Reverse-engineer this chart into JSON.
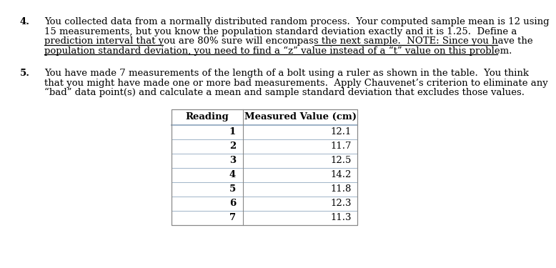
{
  "q4_lines": [
    "You collected data from a normally distributed random process.  Your computed sample mean is 12 using",
    "15 measurements, but you know the population standard deviation exactly and it is 1.25.  Define a",
    "prediction interval that you are 80% sure will encompass the next sample.  NOTE: Since you have the",
    "population standard deviation, you need to find a “z” value instead of a “t” value on this problem."
  ],
  "q5_lines": [
    "You have made 7 measurements of the length of a bolt using a ruler as shown in the table.  You think",
    "that you might have made one or more bad measurements.  Apply Chauvenet’s criterion to eliminate any",
    "“bad” data point(s) and calculate a mean and sample standard deviation that excludes those values."
  ],
  "col_headers": [
    "Reading",
    "Measured Value (cm)"
  ],
  "rows": [
    [
      "1",
      "12.1"
    ],
    [
      "2",
      "11.7"
    ],
    [
      "3",
      "12.5"
    ],
    [
      "4",
      "14.2"
    ],
    [
      "5",
      "11.8"
    ],
    [
      "6",
      "12.3"
    ],
    [
      "7",
      "11.3"
    ]
  ],
  "bg_color": "#ffffff",
  "text_color": "#000000",
  "line_color": "#a0b4c8",
  "fontsize": 9.5,
  "table_fontsize": 9.5
}
